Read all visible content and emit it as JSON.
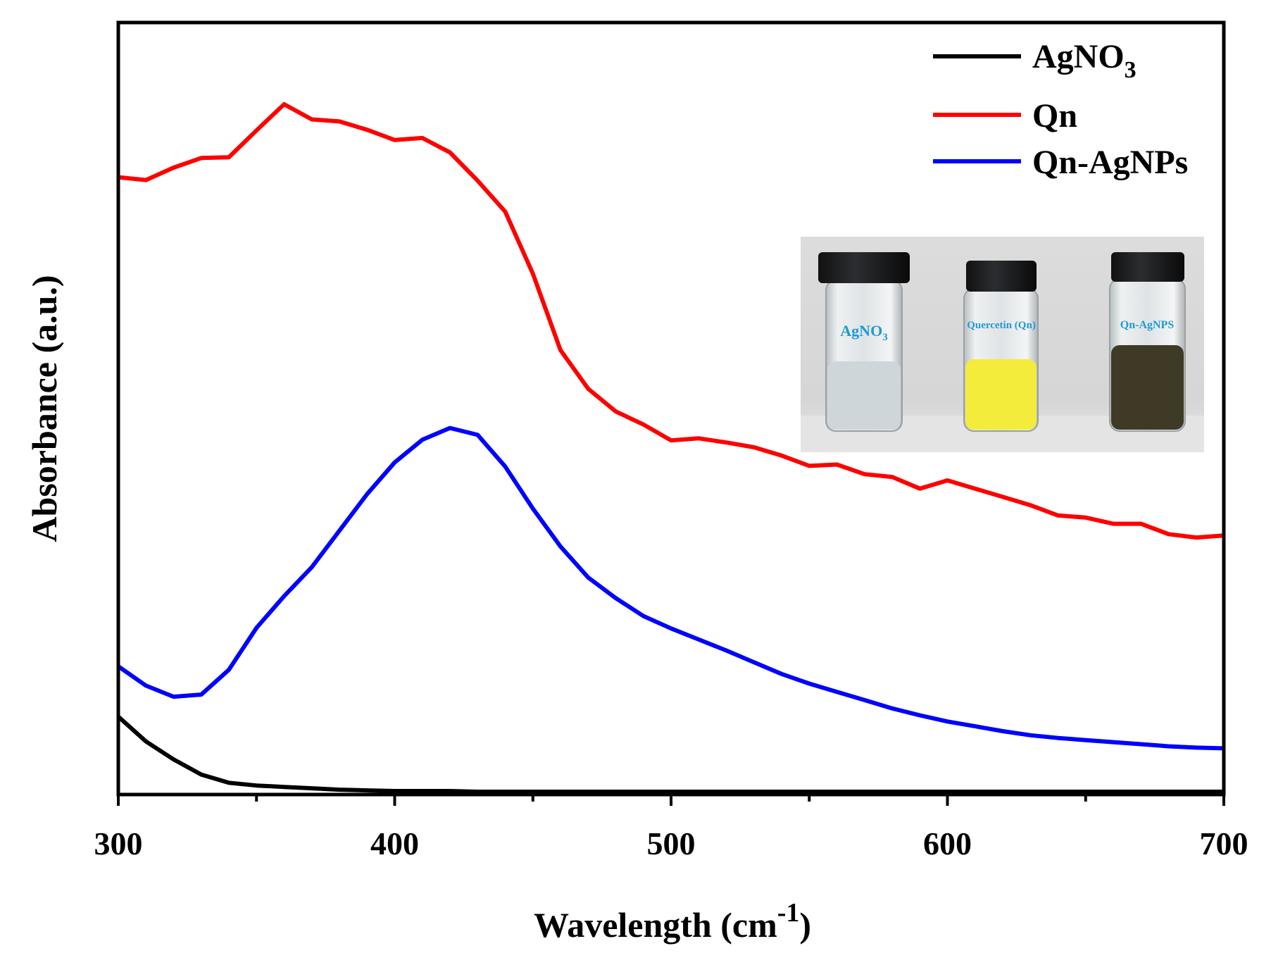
{
  "chart_data": {
    "type": "line",
    "title": "",
    "xlabel": "Wavelength (cm",
    "xlabel_superscript": "-1",
    "ylabel": "Absorbance (a.u.)",
    "xlim": [
      300,
      700
    ],
    "ylim": [
      0,
      100
    ],
    "y_ticks_labeled": false,
    "x_ticks": [
      "300",
      "400",
      "500",
      "600",
      "700"
    ],
    "legend_position": "top-right",
    "x": [
      300,
      310,
      320,
      330,
      340,
      350,
      360,
      370,
      380,
      390,
      400,
      410,
      420,
      430,
      440,
      450,
      460,
      470,
      480,
      490,
      500,
      510,
      520,
      530,
      540,
      550,
      560,
      570,
      580,
      590,
      600,
      610,
      620,
      630,
      640,
      650,
      660,
      670,
      680,
      690,
      700
    ],
    "series": [
      {
        "name": "AgNO",
        "name_subscript": "3",
        "color": "#000000",
        "values": [
          11.0,
          7.4,
          4.8,
          2.6,
          1.4,
          1.0,
          0.8,
          0.6,
          0.4,
          0.3,
          0.2,
          0.2,
          0.2,
          0.1,
          0.1,
          0.1,
          0.1,
          0.1,
          0.1,
          0.1,
          0.1,
          0.1,
          0.1,
          0.1,
          0.1,
          0.1,
          0.1,
          0.1,
          0.1,
          0.1,
          0.1,
          0.1,
          0.1,
          0.1,
          0.1,
          0.1,
          0.1,
          0.1,
          0.1,
          0.1,
          0.1
        ]
      },
      {
        "name": "Qn",
        "name_subscript": "",
        "color": "#ff0000",
        "values": [
          89.3,
          88.9,
          90.7,
          92.1,
          92.2,
          96.1,
          99.9,
          97.7,
          97.4,
          96.2,
          94.7,
          95.0,
          92.9,
          88.8,
          84.3,
          75.3,
          64.2,
          58.6,
          55.3,
          53.4,
          51.1,
          51.4,
          50.8,
          50.1,
          48.9,
          47.4,
          47.6,
          46.2,
          45.8,
          44.1,
          45.3,
          44.1,
          42.9,
          41.7,
          40.2,
          39.9,
          39.0,
          39.0,
          37.5,
          37.0,
          37.3
        ]
      },
      {
        "name": "Qn-AgNPs",
        "name_subscript": "",
        "color": "#0000ff",
        "values": [
          18.3,
          15.5,
          13.9,
          14.2,
          17.8,
          23.9,
          28.5,
          32.7,
          38.0,
          43.3,
          47.9,
          51.2,
          52.9,
          51.9,
          47.3,
          41.2,
          35.7,
          31.2,
          28.2,
          25.6,
          23.8,
          22.2,
          20.6,
          18.9,
          17.2,
          15.8,
          14.6,
          13.4,
          12.2,
          11.2,
          10.3,
          9.6,
          8.9,
          8.3,
          7.9,
          7.6,
          7.3,
          7.0,
          6.7,
          6.5,
          6.4
        ]
      }
    ]
  },
  "inset_photo": {
    "vial_labels": [
      {
        "text": "AgNO",
        "subscript": "3"
      },
      {
        "text": "Quercetin (Qn)",
        "subscript": ""
      },
      {
        "text": "Qn-AgNPS",
        "subscript": ""
      }
    ],
    "liquid_colors": [
      "#cfd6da",
      "#f3ec3a",
      "#3f3a26"
    ]
  }
}
